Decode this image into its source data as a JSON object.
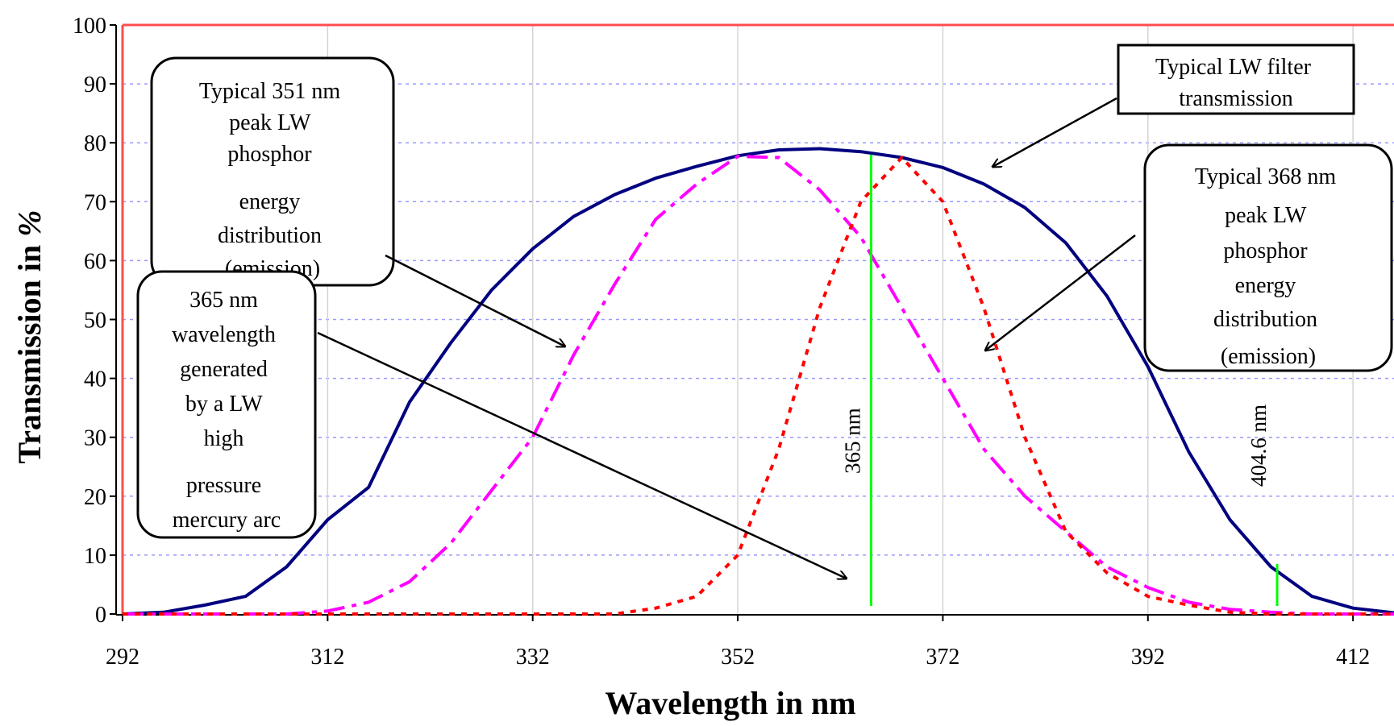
{
  "chart_data": {
    "type": "line",
    "xlabel": "Wavelength in nm",
    "ylabel_main": "Transmission in ",
    "ylabel_unit": "%",
    "xlim": [
      292,
      416
    ],
    "ylim": [
      0,
      100
    ],
    "x_ticks": [
      292,
      312,
      332,
      352,
      372,
      392,
      412
    ],
    "y_ticks": [
      0,
      10,
      20,
      30,
      40,
      50,
      60,
      70,
      80,
      90,
      100
    ],
    "grid": "horizontal dashed",
    "series": [
      {
        "key": "filter",
        "color": "#000080",
        "style": "solid",
        "points": [
          [
            292,
            0
          ],
          [
            296,
            0.3
          ],
          [
            300,
            1.5
          ],
          [
            304,
            3
          ],
          [
            308,
            8
          ],
          [
            312,
            16
          ],
          [
            316,
            21.5
          ],
          [
            320,
            36
          ],
          [
            324,
            46
          ],
          [
            328,
            55
          ],
          [
            332,
            62
          ],
          [
            336,
            67.5
          ],
          [
            340,
            71.2
          ],
          [
            344,
            74
          ],
          [
            348,
            76
          ],
          [
            352,
            77.8
          ],
          [
            356,
            78.8
          ],
          [
            360,
            79
          ],
          [
            364,
            78.5
          ],
          [
            368,
            77.5
          ],
          [
            372,
            75.8
          ],
          [
            376,
            73
          ],
          [
            380,
            69
          ],
          [
            384,
            63
          ],
          [
            388,
            54
          ],
          [
            392,
            42
          ],
          [
            396,
            27.5
          ],
          [
            400,
            16
          ],
          [
            404,
            8
          ],
          [
            408,
            3
          ],
          [
            412,
            1
          ],
          [
            416,
            0.2
          ]
        ]
      },
      {
        "key": "phosphor351",
        "color": "#ff00ff",
        "style": "dash-dot",
        "points": [
          [
            292,
            0
          ],
          [
            296,
            0
          ],
          [
            300,
            0
          ],
          [
            304,
            0
          ],
          [
            308,
            0
          ],
          [
            312,
            0.5
          ],
          [
            316,
            2
          ],
          [
            320,
            5.5
          ],
          [
            324,
            12
          ],
          [
            328,
            21
          ],
          [
            332,
            30
          ],
          [
            336,
            44
          ],
          [
            340,
            56
          ],
          [
            344,
            67
          ],
          [
            348,
            73
          ],
          [
            352,
            77.7
          ],
          [
            356,
            77.5
          ],
          [
            360,
            72
          ],
          [
            364,
            64
          ],
          [
            368,
            52
          ],
          [
            372,
            40
          ],
          [
            376,
            28
          ],
          [
            380,
            20
          ],
          [
            384,
            14
          ],
          [
            388,
            8
          ],
          [
            392,
            4.5
          ],
          [
            396,
            2
          ],
          [
            400,
            0.8
          ],
          [
            404,
            0.3
          ],
          [
            408,
            0
          ],
          [
            412,
            0
          ],
          [
            416,
            0
          ]
        ]
      },
      {
        "key": "phosphor368",
        "color": "#ff0000",
        "style": "dotted",
        "points": [
          [
            292,
            0
          ],
          [
            296,
            0
          ],
          [
            300,
            0
          ],
          [
            304,
            0
          ],
          [
            308,
            0
          ],
          [
            312,
            0
          ],
          [
            316,
            0
          ],
          [
            320,
            0
          ],
          [
            324,
            0
          ],
          [
            328,
            0
          ],
          [
            332,
            0
          ],
          [
            336,
            0
          ],
          [
            340,
            0
          ],
          [
            344,
            1
          ],
          [
            348,
            3
          ],
          [
            352,
            10
          ],
          [
            356,
            28
          ],
          [
            360,
            52
          ],
          [
            364,
            70
          ],
          [
            368,
            77.5
          ],
          [
            372,
            70
          ],
          [
            376,
            52
          ],
          [
            380,
            30
          ],
          [
            384,
            14
          ],
          [
            388,
            7
          ],
          [
            392,
            3
          ],
          [
            396,
            1.5
          ],
          [
            400,
            0.3
          ],
          [
            404,
            0
          ],
          [
            408,
            0
          ],
          [
            412,
            0
          ],
          [
            416,
            0
          ]
        ]
      }
    ],
    "spectral_lines": [
      {
        "x": 365,
        "y": 78,
        "color": "#00ff00",
        "label": "365 nm"
      },
      {
        "x": 404.6,
        "y": 8.5,
        "color": "#00ff00",
        "label": "404.6 nm"
      }
    ],
    "annotations": {
      "filter": [
        "Typical LW filter",
        "transmission"
      ],
      "phosphor351": [
        "Typical 351 nm",
        "peak LW",
        "phosphor",
        "energy",
        "distribution",
        "(emission)"
      ],
      "mercury": [
        "365 nm",
        "wavelength",
        "generated",
        "by a LW",
        "high",
        "pressure",
        "mercury arc"
      ],
      "phosphor368": [
        "Typical 368 nm",
        "peak LW",
        "phosphor",
        "energy",
        "distribution",
        "(emission)"
      ]
    }
  }
}
